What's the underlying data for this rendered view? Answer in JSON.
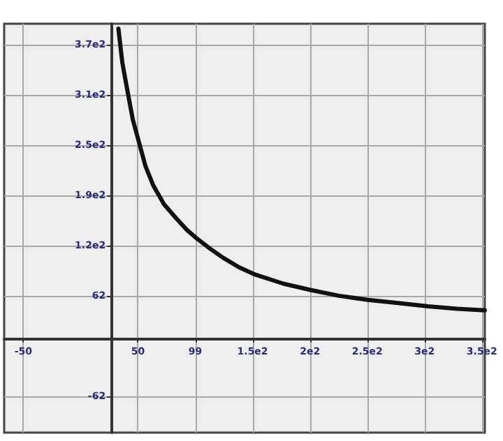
{
  "chart_data": {
    "type": "line",
    "x": [
      32.6,
      36,
      40.7,
      45,
      50.7,
      56,
      62.8,
      72,
      83,
      92,
      101,
      112,
      123,
      137,
      151,
      175,
      199,
      223,
      248,
      274,
      300,
      325,
      349
    ],
    "series": [
      {
        "color": "#111111",
        "values": [
          392,
          350,
          313,
          280,
          250,
          222,
          198,
          175,
          157,
          143,
          132,
          120,
          109,
          97,
          88,
          77,
          69,
          62,
          57,
          53,
          49,
          46,
          44
        ]
      }
    ],
    "xlim": [
      -66,
      349
    ],
    "ylim": [
      -107,
      398
    ],
    "xticks": [
      {
        "value": -49.5,
        "label": "-50"
      },
      {
        "value": 49.5,
        "label": "50"
      },
      99,
      {
        "value": 148.5,
        "label": "1.5e2"
      },
      {
        "value": 198,
        "label": "2e2"
      },
      {
        "value": 247.5,
        "label": "2.5e2"
      },
      {
        "value": 297,
        "label": "3e2"
      },
      {
        "value": 346.5,
        "label": "3.5e2"
      }
    ],
    "yticks": [
      {
        "value": -62,
        "label": "-62"
      },
      {
        "value": 62,
        "label": "62"
      },
      {
        "value": 124,
        "label": "1.2e2"
      },
      {
        "value": 186,
        "label": "1.9e2"
      },
      {
        "value": 248,
        "label": "2.5e2"
      },
      {
        "value": 310,
        "label": "3.1e2"
      },
      {
        "value": 372,
        "label": "3.7e2"
      }
    ],
    "grid": true,
    "marker": "none",
    "line_style": "solid"
  }
}
